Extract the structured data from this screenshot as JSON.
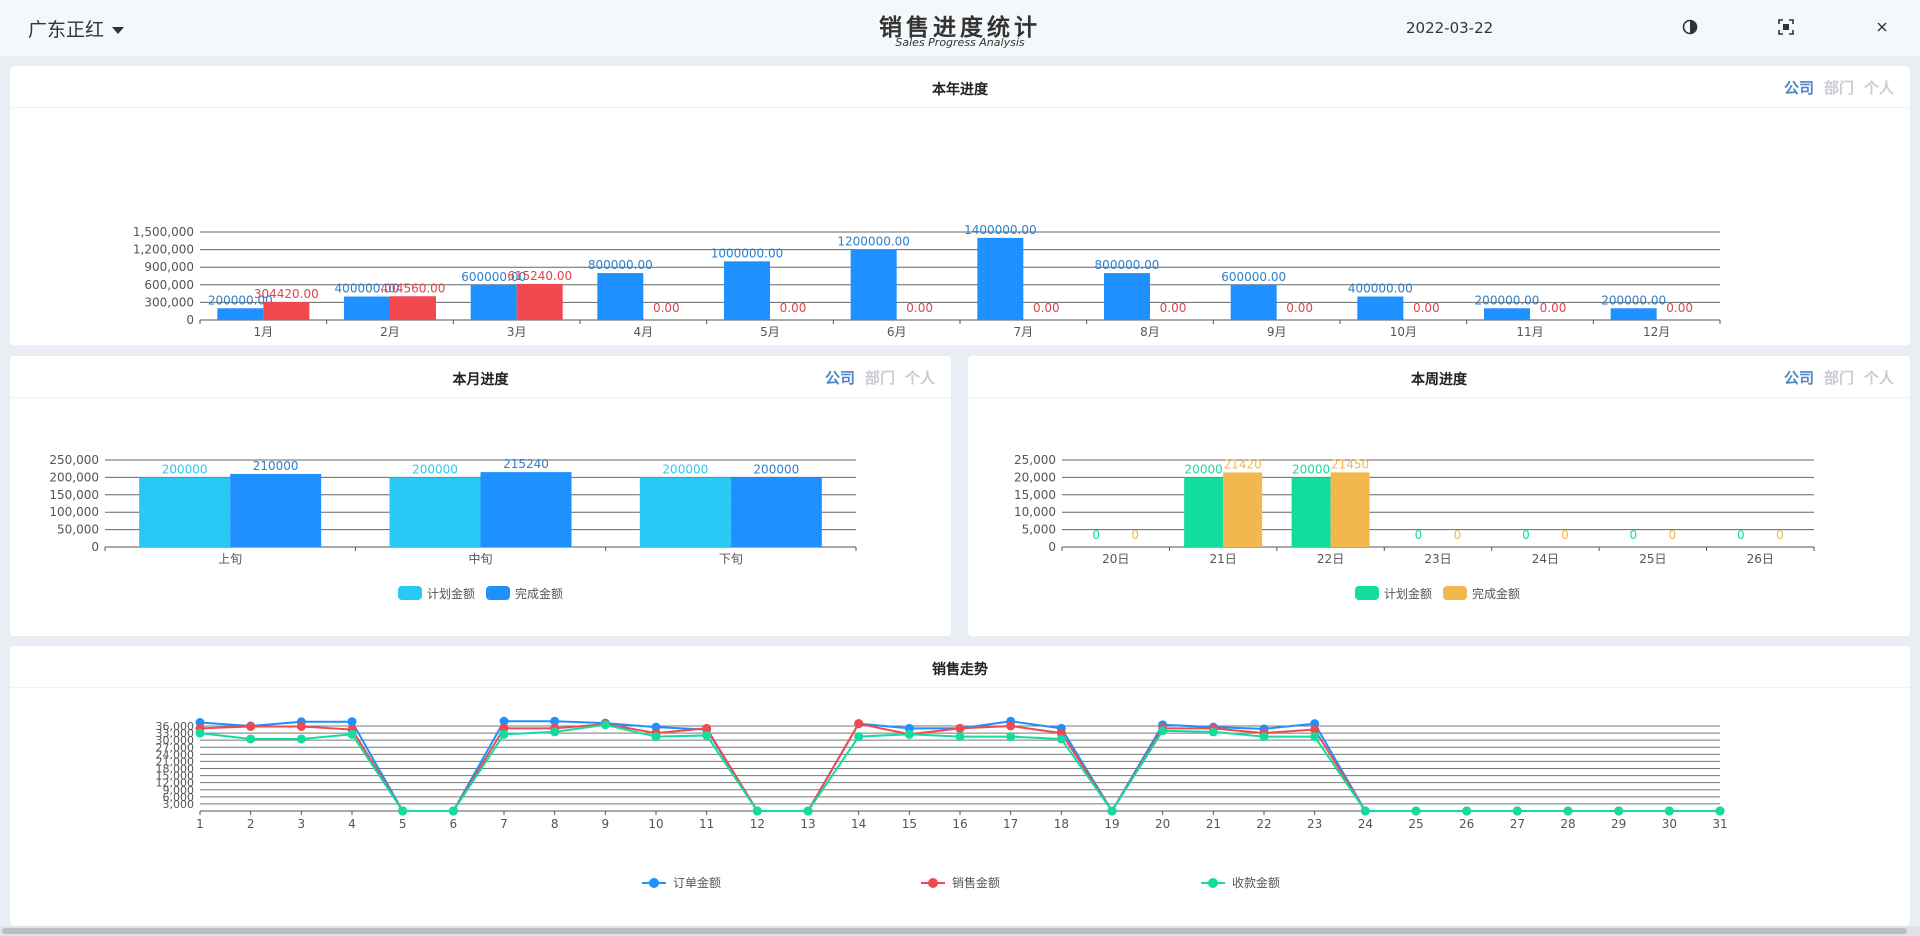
{
  "header": {
    "company": "广东正红",
    "title": "销售进度统计",
    "subtitle": "Sales Progress Analysis",
    "date": "2022-03-22",
    "icons": [
      "contrast-icon",
      "fullscreen-icon",
      "close-icon"
    ]
  },
  "scope_tabs": [
    "公司",
    "部门",
    "个人"
  ],
  "panels": {
    "year": {
      "title": "本年进度"
    },
    "month": {
      "title": "本月进度"
    },
    "week": {
      "title": "本周进度"
    },
    "trend": {
      "title": "销售走势"
    }
  },
  "colors": {
    "blue": "#1e90ff",
    "red": "#f2484f",
    "cyan": "#29c9f5",
    "green": "#12dc9e",
    "yellow": "#f2b84d",
    "active_tab": "#4c86c6"
  },
  "chart_data": [
    {
      "id": "year",
      "type": "bar",
      "categories": [
        "1月",
        "2月",
        "3月",
        "4月",
        "5月",
        "6月",
        "7月",
        "8月",
        "9月",
        "10月",
        "11月",
        "12月"
      ],
      "series": [
        {
          "name": "计划金额",
          "values": [
            200000,
            400000,
            600000,
            800000,
            1000000,
            1200000,
            1400000,
            800000,
            600000,
            400000,
            200000,
            200000
          ],
          "labels": [
            "200000.00",
            "400000.00",
            "600000.00",
            "800000.00",
            "1000000.00",
            "1200000.00",
            "1400000.00",
            "800000.00",
            "600000.00",
            "400000.00",
            "200000.00",
            "200000.00"
          ]
        },
        {
          "name": "完成金额",
          "values": [
            304420,
            404560,
            615240,
            0,
            0,
            0,
            0,
            0,
            0,
            0,
            0,
            0
          ],
          "labels": [
            "304420.00",
            "404560.00",
            "615240.00",
            "0.00",
            "0.00",
            "0.00",
            "0.00",
            "0.00",
            "0.00",
            "0.00",
            "0.00",
            "0.00"
          ]
        }
      ],
      "ylim": [
        0,
        1500000
      ],
      "yticks": [
        "0",
        "300,000",
        "600,000",
        "900,000",
        "1,200,000",
        "1,500,000"
      ],
      "legend": "bottom"
    },
    {
      "id": "month",
      "type": "bar",
      "categories": [
        "上旬",
        "中旬",
        "下旬"
      ],
      "series": [
        {
          "name": "计划金额",
          "values": [
            200000,
            200000,
            200000
          ],
          "labels": [
            "200000",
            "200000",
            "200000"
          ]
        },
        {
          "name": "完成金额",
          "values": [
            210000,
            215240,
            200000
          ],
          "labels": [
            "210000",
            "215240",
            "200000"
          ]
        }
      ],
      "ylim": [
        0,
        250000
      ],
      "yticks": [
        "0",
        "50,000",
        "100,000",
        "150,000",
        "200,000",
        "250,000"
      ],
      "legend": "bottom"
    },
    {
      "id": "week",
      "type": "bar",
      "categories": [
        "20日",
        "21日",
        "22日",
        "23日",
        "24日",
        "25日",
        "26日"
      ],
      "series": [
        {
          "name": "计划金额",
          "values": [
            0,
            20000,
            20000,
            0,
            0,
            0,
            0
          ],
          "labels": [
            "0",
            "20000",
            "20000",
            "0",
            "0",
            "0",
            "0"
          ]
        },
        {
          "name": "完成金额",
          "values": [
            0,
            21420,
            21450,
            0,
            0,
            0,
            0
          ],
          "labels": [
            "0",
            "21420",
            "21450",
            "0",
            "0",
            "0",
            "0"
          ]
        }
      ],
      "ylim": [
        0,
        25000
      ],
      "yticks": [
        "0",
        "5,000",
        "10,000",
        "15,000",
        "20,000",
        "25,000"
      ],
      "legend": "bottom"
    },
    {
      "id": "trend",
      "type": "line",
      "x": [
        "1",
        "2",
        "3",
        "4",
        "5",
        "6",
        "7",
        "8",
        "9",
        "10",
        "11",
        "12",
        "13",
        "14",
        "15",
        "16",
        "17",
        "18",
        "19",
        "20",
        "21",
        "22",
        "23",
        "24",
        "25",
        "26",
        "27",
        "28",
        "29",
        "30",
        "31"
      ],
      "series": [
        {
          "name": "订单金额",
          "values": [
            37500,
            36000,
            37800,
            37800,
            0,
            0,
            38000,
            38000,
            37200,
            35500,
            34500,
            0,
            0,
            37000,
            35000,
            35000,
            38000,
            35000,
            0,
            36500,
            35500,
            34800,
            37000,
            0,
            0,
            0,
            0,
            0,
            0,
            0,
            0
          ]
        },
        {
          "name": "销售金额",
          "values": [
            35000,
            35800,
            35800,
            34500,
            0,
            0,
            35000,
            35000,
            36800,
            33000,
            35000,
            0,
            0,
            37000,
            32500,
            35000,
            36000,
            33000,
            0,
            35000,
            35000,
            33000,
            34500,
            0,
            0,
            0,
            0,
            0,
            0,
            0,
            0
          ]
        },
        {
          "name": "收款金额",
          "values": [
            33000,
            30500,
            30500,
            32500,
            0,
            0,
            32500,
            33500,
            36500,
            31500,
            32000,
            0,
            0,
            31500,
            32500,
            31500,
            31500,
            30500,
            0,
            34000,
            33500,
            31500,
            31500,
            0,
            0,
            0,
            0,
            0,
            0,
            0,
            0
          ]
        }
      ],
      "ylim": [
        0,
        36000
      ],
      "yticks": [
        "3,000",
        "6,000",
        "9,000",
        "12,000",
        "15,000",
        "18,000",
        "21,000",
        "24,000",
        "27,000",
        "30,000",
        "33,000",
        "36,000"
      ],
      "legend": "bottom"
    }
  ]
}
